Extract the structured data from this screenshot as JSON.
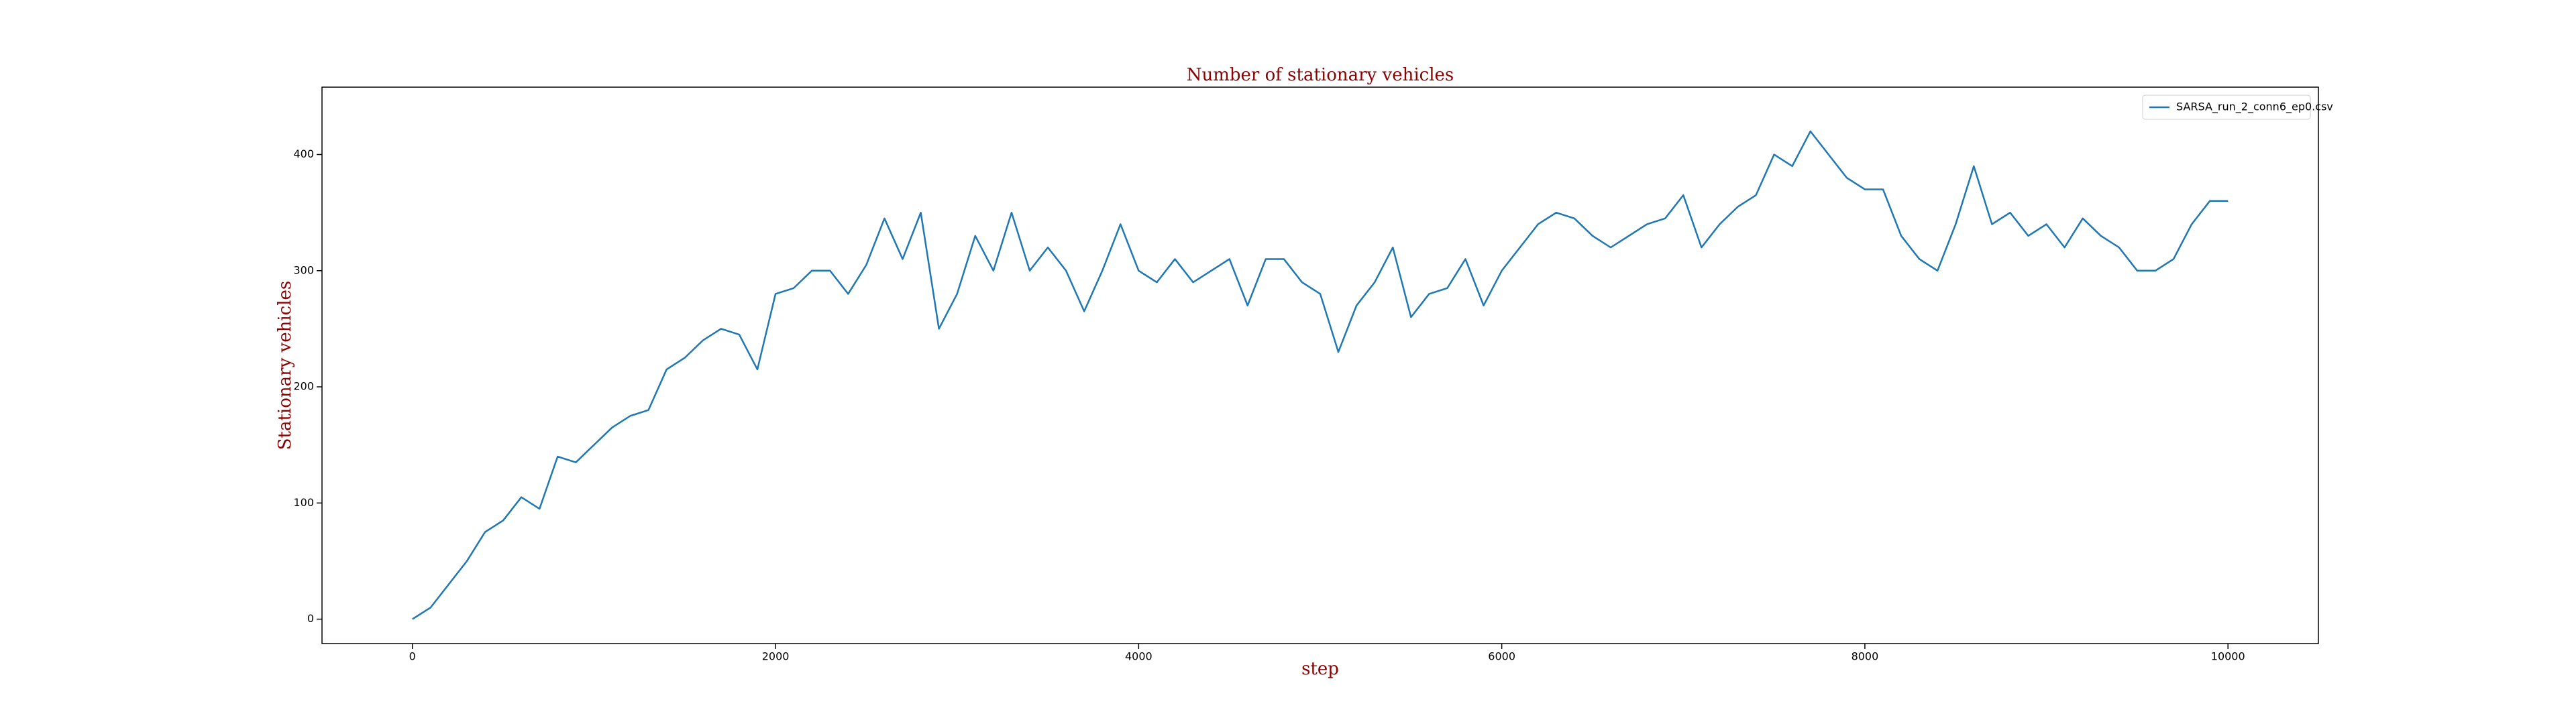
{
  "chart_data": {
    "type": "line",
    "title": "Number of stationary vehicles",
    "x_label": "step",
    "y_label": "Stationary vehicles",
    "x": [
      0,
      100,
      200,
      300,
      400,
      500,
      600,
      700,
      800,
      900,
      1000,
      1100,
      1200,
      1300,
      1400,
      1500,
      1600,
      1700,
      1800,
      1900,
      2000,
      2100,
      2200,
      2300,
      2400,
      2500,
      2600,
      2700,
      2800,
      2900,
      3000,
      3100,
      3200,
      3300,
      3400,
      3500,
      3600,
      3700,
      3800,
      3900,
      4000,
      4100,
      4200,
      4300,
      4400,
      4500,
      4600,
      4700,
      4800,
      4900,
      5000,
      5100,
      5200,
      5300,
      5400,
      5500,
      5600,
      5700,
      5800,
      5900,
      6000,
      6100,
      6200,
      6300,
      6400,
      6500,
      6600,
      6700,
      6800,
      6900,
      7000,
      7100,
      7200,
      7300,
      7400,
      7500,
      7600,
      7700,
      7800,
      7900,
      8000,
      8100,
      8200,
      8300,
      8400,
      8500,
      8600,
      8700,
      8800,
      8900,
      9000,
      9100,
      9200,
      9300,
      9400,
      9500,
      9600,
      9700,
      9800,
      9900,
      10000
    ],
    "series": [
      {
        "name": "SARSA_run_2_conn6_ep0.csv",
        "color": "#1f77b4",
        "values": [
          0,
          10,
          30,
          50,
          75,
          85,
          105,
          95,
          140,
          135,
          150,
          165,
          175,
          180,
          215,
          225,
          240,
          250,
          245,
          215,
          280,
          285,
          300,
          300,
          280,
          305,
          345,
          310,
          350,
          250,
          280,
          330,
          300,
          350,
          300,
          320,
          300,
          265,
          300,
          340,
          300,
          290,
          310,
          290,
          300,
          310,
          270,
          310,
          310,
          290,
          280,
          230,
          270,
          290,
          320,
          260,
          280,
          285,
          310,
          270,
          300,
          320,
          340,
          350,
          345,
          330,
          320,
          330,
          340,
          345,
          365,
          320,
          340,
          355,
          365,
          400,
          390,
          420,
          400,
          380,
          370,
          370,
          330,
          310,
          300,
          340,
          390,
          340,
          350,
          330,
          340,
          320,
          345,
          330,
          320,
          300,
          300,
          310,
          340,
          360,
          360
        ]
      }
    ],
    "xlim": [
      -498,
      10498
    ],
    "ylim": [
      -21,
      458
    ],
    "xticks": [
      0,
      2000,
      4000,
      6000,
      8000,
      10000
    ],
    "yticks": [
      0,
      100,
      200,
      300,
      400
    ],
    "legend": "upper right"
  }
}
